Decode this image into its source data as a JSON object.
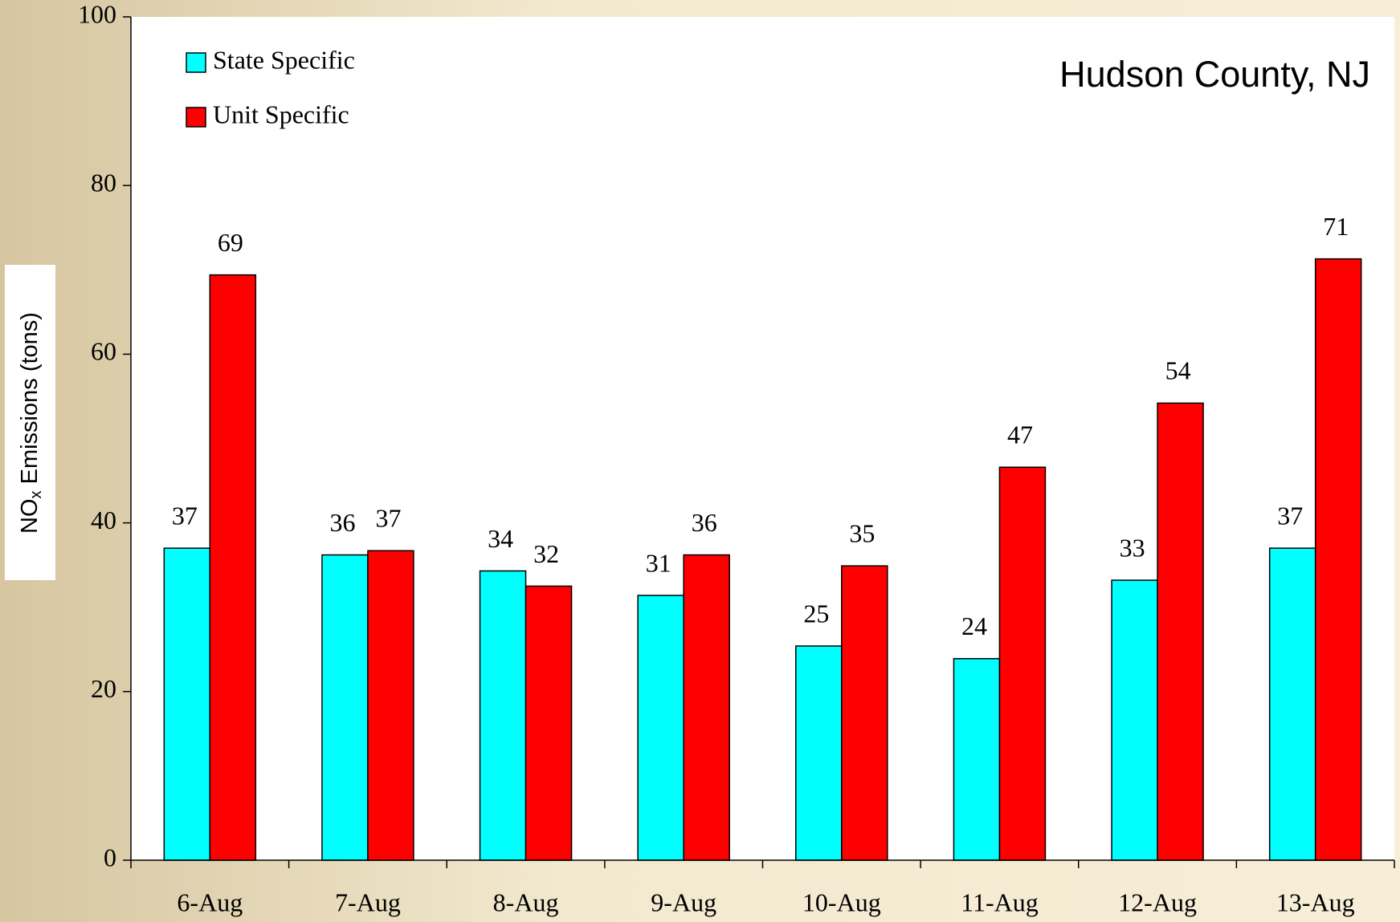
{
  "chart_data": {
    "type": "bar",
    "title": "Hudson County, NJ",
    "y_label": [
      "NO",
      "x",
      " Emissions (tons)"
    ],
    "categories": [
      "6-Aug",
      "7-Aug",
      "8-Aug",
      "9-Aug",
      "10-Aug",
      "11-Aug",
      "12-Aug",
      "13-Aug"
    ],
    "series": [
      {
        "name": "State Specific",
        "color": "#00ffff",
        "values": [
          37.0,
          36.2,
          34.3,
          31.4,
          25.4,
          23.9,
          33.2,
          37.0
        ],
        "value_labels": [
          "37",
          "36",
          "34",
          "31",
          "25",
          "24",
          "33",
          "37"
        ]
      },
      {
        "name": "Unit Specific",
        "color": "#ff0000",
        "values": [
          69.4,
          36.7,
          32.5,
          36.2,
          34.9,
          46.6,
          54.2,
          71.3
        ],
        "value_labels": [
          "69",
          "37",
          "32",
          "36",
          "35",
          "47",
          "54",
          "71"
        ]
      }
    ],
    "ylim": [
      0,
      100
    ],
    "yticks": [
      0,
      20,
      40,
      60,
      80,
      100
    ],
    "grid": false,
    "legend": "top-left"
  }
}
